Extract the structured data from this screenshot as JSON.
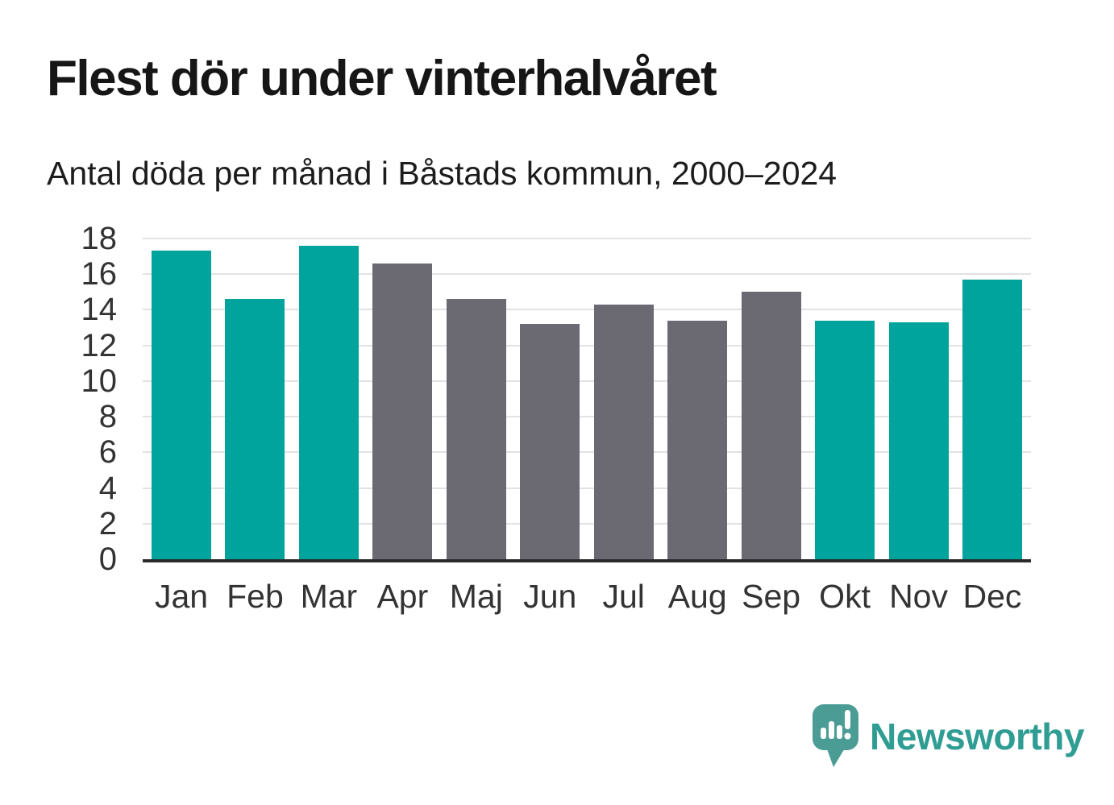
{
  "title": "Flest dör under vinterhalvåret",
  "subtitle": "Antal döda per månad i Båstads kommun, 2000–2024",
  "chart_data": {
    "type": "bar",
    "categories": [
      "Jan",
      "Feb",
      "Mar",
      "Apr",
      "Maj",
      "Jun",
      "Jul",
      "Aug",
      "Sep",
      "Okt",
      "Nov",
      "Dec"
    ],
    "values": [
      17.3,
      14.6,
      17.6,
      16.6,
      14.6,
      13.2,
      14.3,
      13.4,
      15.0,
      13.4,
      13.3,
      15.7
    ],
    "bar_groups": [
      "winter",
      "winter",
      "winter",
      "summer",
      "summer",
      "summer",
      "summer",
      "summer",
      "summer",
      "winter",
      "winter",
      "winter"
    ],
    "colors": {
      "winter": "#00a49c",
      "summer": "#6b6a72"
    },
    "xlabel": "",
    "ylabel": "",
    "ylim": [
      0,
      18
    ],
    "yticks": [
      0,
      2,
      4,
      6,
      8,
      10,
      12,
      14,
      16,
      18
    ],
    "grid": true,
    "legend": "none"
  },
  "footer": {
    "brand": "Newsworthy",
    "brand_color": "#2f9d93",
    "logo_icon": "newsworthy-speech-bubble-bar-chart-icon"
  }
}
